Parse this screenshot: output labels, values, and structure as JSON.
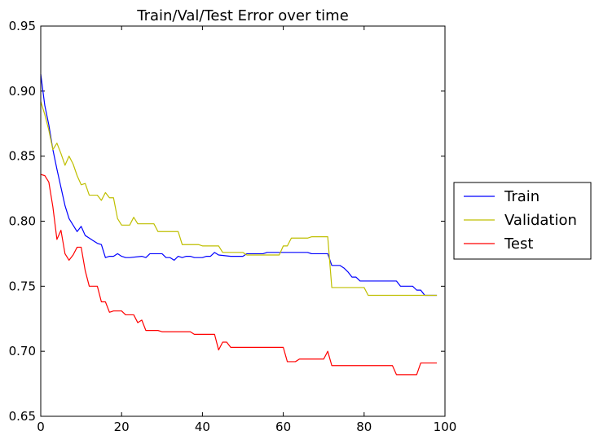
{
  "chart_data": {
    "type": "line",
    "title": "Train/Val/Test Error over time",
    "xlabel": "",
    "ylabel": "",
    "xlim": [
      0,
      100
    ],
    "ylim": [
      0.65,
      0.95
    ],
    "xticks": [
      0,
      20,
      40,
      60,
      80,
      100
    ],
    "yticks": [
      0.65,
      0.7,
      0.75,
      0.8,
      0.85,
      0.9,
      0.95
    ],
    "xtick_labels": [
      "0",
      "20",
      "40",
      "60",
      "80",
      "100"
    ],
    "ytick_labels": [
      "0.65",
      "0.70",
      "0.75",
      "0.80",
      "0.85",
      "0.90",
      "0.95"
    ],
    "grid": false,
    "legend_placement": "center-right-outside",
    "series": [
      {
        "name": "Train",
        "color": "#0000ff",
        "points": [
          [
            0,
            0.913
          ],
          [
            1,
            0.889
          ],
          [
            2,
            0.874
          ],
          [
            3,
            0.855
          ],
          [
            4,
            0.84
          ],
          [
            5,
            0.826
          ],
          [
            6,
            0.812
          ],
          [
            7,
            0.802
          ],
          [
            8,
            0.797
          ],
          [
            9,
            0.792
          ],
          [
            10,
            0.796
          ],
          [
            11,
            0.789
          ],
          [
            12,
            0.787
          ],
          [
            13,
            0.785
          ],
          [
            14,
            0.783
          ],
          [
            15,
            0.782
          ],
          [
            16,
            0.772
          ],
          [
            17,
            0.773
          ],
          [
            18,
            0.773
          ],
          [
            19,
            0.775
          ],
          [
            20,
            0.773
          ],
          [
            21,
            0.772
          ],
          [
            22,
            0.772
          ],
          [
            25,
            0.773
          ],
          [
            26,
            0.772
          ],
          [
            27,
            0.775
          ],
          [
            30,
            0.775
          ],
          [
            31,
            0.772
          ],
          [
            32,
            0.772
          ],
          [
            33,
            0.77
          ],
          [
            34,
            0.773
          ],
          [
            35,
            0.772
          ],
          [
            36,
            0.773
          ],
          [
            37,
            0.773
          ],
          [
            38,
            0.772
          ],
          [
            39,
            0.772
          ],
          [
            40,
            0.772
          ],
          [
            41,
            0.773
          ],
          [
            42,
            0.773
          ],
          [
            43,
            0.776
          ],
          [
            44,
            0.774
          ],
          [
            47,
            0.773
          ],
          [
            50,
            0.773
          ],
          [
            51,
            0.775
          ],
          [
            55,
            0.775
          ],
          [
            56,
            0.776
          ],
          [
            66,
            0.776
          ],
          [
            67,
            0.775
          ],
          [
            71,
            0.775
          ],
          [
            72,
            0.766
          ],
          [
            74,
            0.766
          ],
          [
            75,
            0.764
          ],
          [
            76,
            0.761
          ],
          [
            77,
            0.757
          ],
          [
            78,
            0.757
          ],
          [
            79,
            0.754
          ],
          [
            88,
            0.754
          ],
          [
            89,
            0.75
          ],
          [
            92,
            0.75
          ],
          [
            93,
            0.747
          ],
          [
            94,
            0.747
          ],
          [
            95,
            0.743
          ],
          [
            98,
            0.743
          ]
        ]
      },
      {
        "name": "Validation",
        "color": "#bfbf00",
        "points": [
          [
            0,
            0.892
          ],
          [
            1,
            0.882
          ],
          [
            2,
            0.87
          ],
          [
            3,
            0.855
          ],
          [
            4,
            0.86
          ],
          [
            5,
            0.852
          ],
          [
            6,
            0.843
          ],
          [
            7,
            0.85
          ],
          [
            8,
            0.844
          ],
          [
            9,
            0.835
          ],
          [
            10,
            0.828
          ],
          [
            11,
            0.829
          ],
          [
            12,
            0.82
          ],
          [
            14,
            0.82
          ],
          [
            15,
            0.816
          ],
          [
            16,
            0.822
          ],
          [
            17,
            0.818
          ],
          [
            18,
            0.818
          ],
          [
            19,
            0.802
          ],
          [
            20,
            0.797
          ],
          [
            22,
            0.797
          ],
          [
            23,
            0.803
          ],
          [
            24,
            0.798
          ],
          [
            28,
            0.798
          ],
          [
            29,
            0.792
          ],
          [
            34,
            0.792
          ],
          [
            35,
            0.782
          ],
          [
            39,
            0.782
          ],
          [
            40,
            0.781
          ],
          [
            44,
            0.781
          ],
          [
            45,
            0.776
          ],
          [
            50,
            0.776
          ],
          [
            51,
            0.774
          ],
          [
            59,
            0.774
          ],
          [
            60,
            0.781
          ],
          [
            61,
            0.781
          ],
          [
            62,
            0.787
          ],
          [
            66,
            0.787
          ],
          [
            67,
            0.788
          ],
          [
            71,
            0.788
          ],
          [
            72,
            0.749
          ],
          [
            80,
            0.749
          ],
          [
            81,
            0.743
          ],
          [
            98,
            0.743
          ]
        ]
      },
      {
        "name": "Test",
        "color": "#ff0000",
        "points": [
          [
            0,
            0.836
          ],
          [
            1,
            0.835
          ],
          [
            2,
            0.83
          ],
          [
            3,
            0.811
          ],
          [
            4,
            0.786
          ],
          [
            5,
            0.793
          ],
          [
            6,
            0.775
          ],
          [
            7,
            0.77
          ],
          [
            8,
            0.774
          ],
          [
            9,
            0.78
          ],
          [
            10,
            0.78
          ],
          [
            11,
            0.762
          ],
          [
            12,
            0.75
          ],
          [
            14,
            0.75
          ],
          [
            15,
            0.738
          ],
          [
            16,
            0.738
          ],
          [
            17,
            0.73
          ],
          [
            18,
            0.731
          ],
          [
            20,
            0.731
          ],
          [
            21,
            0.728
          ],
          [
            23,
            0.728
          ],
          [
            24,
            0.722
          ],
          [
            25,
            0.724
          ],
          [
            26,
            0.716
          ],
          [
            29,
            0.716
          ],
          [
            30,
            0.715
          ],
          [
            37,
            0.715
          ],
          [
            38,
            0.713
          ],
          [
            43,
            0.713
          ],
          [
            44,
            0.701
          ],
          [
            45,
            0.707
          ],
          [
            46,
            0.707
          ],
          [
            47,
            0.703
          ],
          [
            60,
            0.703
          ],
          [
            61,
            0.692
          ],
          [
            63,
            0.692
          ],
          [
            64,
            0.694
          ],
          [
            70,
            0.694
          ],
          [
            71,
            0.7
          ],
          [
            72,
            0.689
          ],
          [
            87,
            0.689
          ],
          [
            88,
            0.682
          ],
          [
            93,
            0.682
          ],
          [
            94,
            0.691
          ],
          [
            98,
            0.691
          ]
        ]
      }
    ]
  }
}
